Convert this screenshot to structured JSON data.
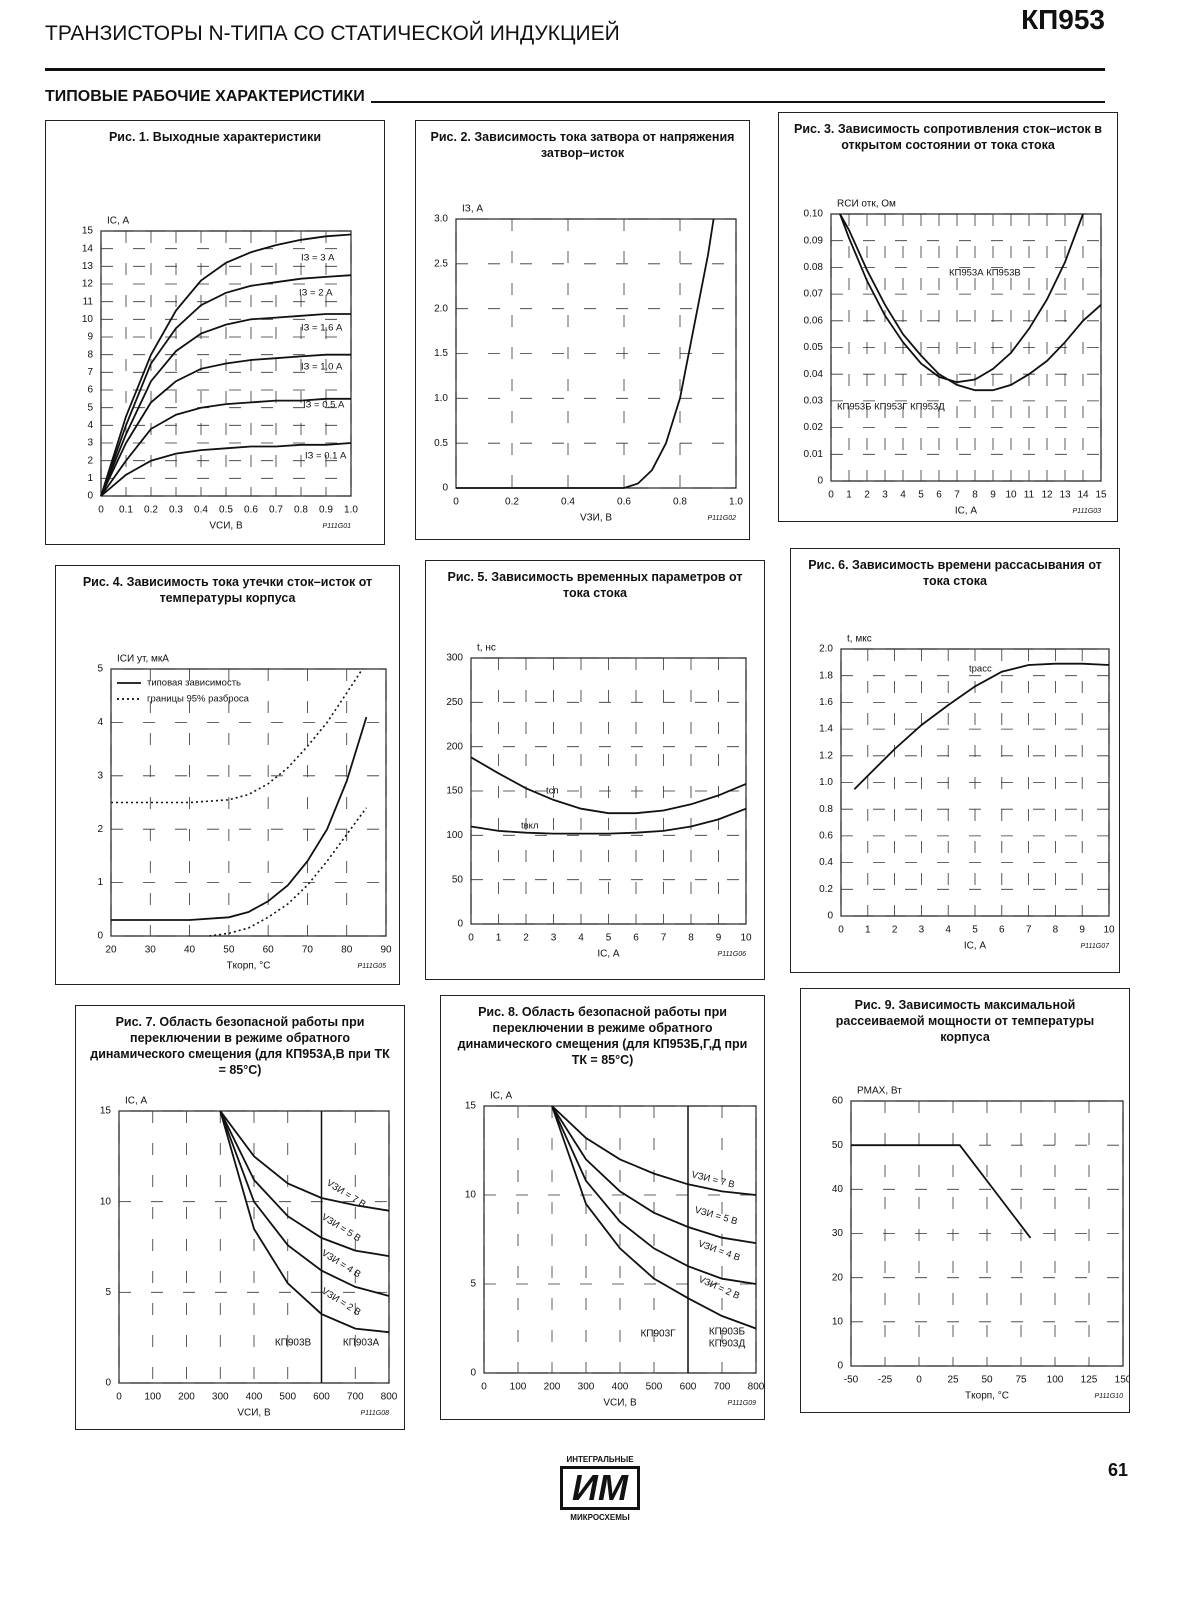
{
  "header": {
    "title": "ТРАНЗИСТОРЫ N-ТИПА СО СТАТИЧЕСКОЙ ИНДУКЦИЕЙ",
    "part": "КП953",
    "section": "ТИПОВЫЕ РАБОЧИЕ ХАРАКТЕРИСТИКИ"
  },
  "chart_data": [
    {
      "type": "line",
      "title": "Рис. 1. Выходные характеристики",
      "ylabel": "IС, А",
      "xlabel": "VСИ, В",
      "code": "P111G01",
      "x": [
        0,
        0.1,
        0.2,
        0.3,
        0.4,
        0.5,
        0.6,
        0.7,
        0.8,
        0.9,
        1.0
      ],
      "series": [
        {
          "name": "IЗ = 3 А",
          "color": "#111111",
          "values": [
            0,
            4.5,
            8,
            10.5,
            12.2,
            13.2,
            13.8,
            14.2,
            14.5,
            14.7,
            14.8
          ]
        },
        {
          "name": "IЗ = 2 А",
          "color": "#111111",
          "values": [
            0,
            4,
            7.5,
            9.5,
            10.8,
            11.5,
            11.9,
            12.1,
            12.3,
            12.4,
            12.5
          ]
        },
        {
          "name": "IЗ = 1.6 А",
          "color": "#111111",
          "values": [
            0,
            3.5,
            6.5,
            8.2,
            9.2,
            9.7,
            10,
            10.1,
            10.2,
            10.3,
            10.3
          ]
        },
        {
          "name": "IЗ = 1.0 А",
          "color": "#111111",
          "values": [
            0,
            3,
            5.3,
            6.5,
            7.2,
            7.5,
            7.7,
            7.8,
            7.9,
            8,
            8
          ]
        },
        {
          "name": "IЗ = 0.5 А",
          "color": "#111111",
          "values": [
            0,
            2,
            3.8,
            4.6,
            5,
            5.2,
            5.3,
            5.4,
            5.4,
            5.5,
            5.5
          ]
        },
        {
          "name": "IЗ = 0.1 А",
          "color": "#111111",
          "values": [
            0,
            1.2,
            2,
            2.4,
            2.6,
            2.7,
            2.8,
            2.8,
            2.9,
            2.9,
            3
          ]
        }
      ],
      "xlim": [
        0,
        1
      ],
      "xticks": [
        0,
        0.1,
        0.2,
        0.3,
        0.4,
        0.5,
        0.6,
        0.7,
        0.8,
        0.9,
        {
          "value": 1,
          "label": "1.0"
        }
      ],
      "ylim": [
        0,
        15
      ],
      "yticks": [
        0,
        1,
        2,
        3,
        4,
        5,
        6,
        7,
        8,
        9,
        10,
        11,
        12,
        13,
        14,
        15
      ],
      "grid": true
    },
    {
      "type": "line",
      "title": "Рис. 2. Зависимость тока затвора от напряжения затвор–исток",
      "ylabel": "IЗ, А",
      "xlabel": "VЗИ, В",
      "code": "P111G02",
      "x": [
        0,
        0.5,
        0.6,
        0.65,
        0.7,
        0.75,
        0.8,
        0.85,
        0.9,
        0.92
      ],
      "values": [
        0,
        0,
        0,
        0.05,
        0.2,
        0.5,
        1.0,
        1.8,
        2.6,
        3.0
      ],
      "color": "#111111",
      "xlim": [
        0,
        1
      ],
      "xticks": [
        0,
        0.2,
        0.4,
        0.6,
        0.8,
        {
          "value": 1,
          "label": "1.0"
        }
      ],
      "ylim": [
        0,
        3
      ],
      "yticks": [
        0,
        0.5,
        {
          "value": 1,
          "label": "1.0"
        },
        1.5,
        {
          "value": 2,
          "label": "2.0"
        },
        2.5,
        {
          "value": 3,
          "label": "3.0"
        }
      ],
      "grid": true
    },
    {
      "type": "line",
      "title": "Рис. 3. Зависимость сопротивления сток–исток в открытом состоянии от тока стока",
      "ylabel": "RСИ отк, Ом",
      "xlabel": "IС, А",
      "code": "P111G03",
      "series": [
        {
          "name": "КП953А КП953В",
          "color": "#111111",
          "x": [
            0.5,
            1,
            2,
            3,
            4,
            5,
            6,
            7,
            8,
            9,
            10,
            11,
            12,
            13,
            14
          ],
          "values": [
            0.1,
            0.091,
            0.075,
            0.062,
            0.052,
            0.044,
            0.039,
            0.037,
            0.038,
            0.042,
            0.048,
            0.057,
            0.068,
            0.082,
            0.1
          ]
        },
        {
          "name": "КП953Б КП953Г КП953Д",
          "color": "#111111",
          "x": [
            0.5,
            1,
            2,
            3,
            4,
            5,
            6,
            7,
            8,
            9,
            10,
            11,
            12,
            13,
            14,
            15
          ],
          "values": [
            0.1,
            0.094,
            0.079,
            0.066,
            0.055,
            0.047,
            0.04,
            0.036,
            0.034,
            0.034,
            0.036,
            0.04,
            0.045,
            0.052,
            0.06,
            0.066
          ]
        }
      ],
      "xlim": [
        0,
        15
      ],
      "xticks": [
        0,
        1,
        2,
        3,
        4,
        5,
        6,
        7,
        8,
        9,
        10,
        11,
        12,
        13,
        14,
        15
      ],
      "ylim": [
        0,
        0.1
      ],
      "yticks": [
        0,
        0.01,
        0.02,
        0.03,
        0.04,
        0.05,
        0.06,
        0.07,
        0.08,
        0.09,
        {
          "value": 0.1,
          "label": "0.10"
        }
      ],
      "grid": true
    },
    {
      "type": "line",
      "title": "Рис. 4. Зависимость тока утечки сток–исток от температуры корпуса",
      "ylabel": "IСИ ут, мкА",
      "xlabel": "Tкорп, °C",
      "code": "P111G05",
      "legend": "upper left",
      "series": [
        {
          "name": "типовая зависимость",
          "color": "#111111",
          "x": [
            20,
            30,
            40,
            50,
            55,
            60,
            65,
            70,
            75,
            80,
            85
          ],
          "values": [
            0.3,
            0.3,
            0.3,
            0.35,
            0.45,
            0.65,
            0.95,
            1.4,
            2.0,
            2.9,
            4.1
          ]
        },
        {
          "name": "границы 95% разброса",
          "color": "#111111",
          "dash": true,
          "x": [
            20,
            30,
            40,
            50,
            55,
            60,
            65,
            70,
            75,
            80,
            84
          ],
          "values": [
            2.5,
            2.5,
            2.5,
            2.55,
            2.65,
            2.85,
            3.15,
            3.55,
            4.0,
            4.55,
            5.0
          ]
        },
        {
          "color": "#111111",
          "dash": true,
          "x": [
            45,
            50,
            55,
            60,
            65,
            70,
            75,
            80,
            85
          ],
          "values": [
            0,
            0.05,
            0.15,
            0.35,
            0.6,
            0.95,
            1.4,
            1.9,
            2.4
          ]
        }
      ],
      "xlim": [
        20,
        90
      ],
      "xticks": [
        20,
        30,
        40,
        50,
        60,
        70,
        80,
        90
      ],
      "ylim": [
        0,
        5
      ],
      "yticks": [
        0,
        1,
        2,
        3,
        4,
        5
      ],
      "grid": true
    },
    {
      "type": "line",
      "title": "Рис. 5. Зависимость временных параметров от тока стока",
      "ylabel": "t, нс",
      "xlabel": "IС, А",
      "code": "P111G06",
      "x": [
        0,
        1,
        2,
        3,
        4,
        5,
        6,
        7,
        8,
        9,
        10
      ],
      "series": [
        {
          "name": "tсп",
          "color": "#111111",
          "values": [
            188,
            170,
            153,
            140,
            130,
            125,
            125,
            128,
            135,
            145,
            158
          ]
        },
        {
          "name": "tвкл",
          "color": "#111111",
          "values": [
            110,
            105,
            103,
            102,
            102,
            102,
            103,
            105,
            110,
            118,
            130
          ]
        }
      ],
      "xlim": [
        0,
        10
      ],
      "xticks": [
        0,
        1,
        2,
        3,
        4,
        5,
        6,
        7,
        8,
        9,
        10
      ],
      "ylim": [
        0,
        300
      ],
      "yticks": [
        0,
        50,
        100,
        150,
        200,
        250,
        300
      ],
      "grid": true
    },
    {
      "type": "line",
      "title": "Рис. 6. Зависимость времени рассасывания от тока стока",
      "ylabel": "t, мкс",
      "xlabel": "IС, А",
      "code": "P111G07",
      "series": [
        {
          "name": "tрасс",
          "color": "#111111",
          "x": [
            0.5,
            1,
            2,
            3,
            4,
            5,
            6,
            7,
            8,
            9,
            10
          ],
          "values": [
            0.95,
            1.05,
            1.25,
            1.43,
            1.58,
            1.72,
            1.83,
            1.88,
            1.89,
            1.89,
            1.88
          ]
        }
      ],
      "xlim": [
        0,
        10
      ],
      "xticks": [
        0,
        1,
        2,
        3,
        4,
        5,
        6,
        7,
        8,
        9,
        10
      ],
      "ylim": [
        0,
        2
      ],
      "yticks": [
        0,
        0.2,
        0.4,
        0.6,
        0.8,
        {
          "value": 1,
          "label": "1.0"
        },
        1.2,
        1.4,
        1.6,
        1.8,
        {
          "value": 2,
          "label": "2.0"
        }
      ],
      "grid": true
    },
    {
      "type": "line",
      "title": "Рис. 7. Область безопасной работы при переключении в режиме обратного динамического смещения (для КП953А,В при TК = 85°С)",
      "ylabel": "IС, А",
      "xlabel": "VСИ, В",
      "code": "P111G08",
      "x": [
        300,
        400,
        500,
        600,
        700,
        800
      ],
      "series": [
        {
          "name": "VЗИ = 7 В",
          "color": "#111111",
          "values": [
            15,
            12.5,
            11,
            10.2,
            9.8,
            9.5
          ]
        },
        {
          "name": "VЗИ = 5 В",
          "color": "#111111",
          "values": [
            15,
            11.2,
            9.2,
            8,
            7.3,
            7
          ]
        },
        {
          "name": "VЗИ = 4 В",
          "color": "#111111",
          "values": [
            15,
            10,
            7.6,
            6.2,
            5.3,
            4.8
          ]
        },
        {
          "name": "VЗИ = 2 В",
          "color": "#111111",
          "values": [
            15,
            8.5,
            5.5,
            3.8,
            3,
            2.8
          ]
        }
      ],
      "divider": 600,
      "regions": [
        "КП903В",
        "КП903А"
      ],
      "xlim": [
        0,
        800
      ],
      "xticks": [
        0,
        100,
        200,
        300,
        400,
        500,
        600,
        700,
        800
      ],
      "ylim": [
        0,
        15
      ],
      "yticks": [
        0,
        5,
        10,
        15
      ],
      "grid": true
    },
    {
      "type": "line",
      "title": "Рис. 8. Область безопасной работы при переключении в режиме обратного динамического смещения (для КП953Б,Г,Д при TК = 85°С)",
      "ylabel": "IС, А",
      "xlabel": "VСИ, В",
      "code": "P111G09",
      "x": [
        200,
        300,
        400,
        500,
        600,
        700,
        800
      ],
      "series": [
        {
          "name": "VЗИ = 7 В",
          "color": "#111111",
          "values": [
            15,
            13.2,
            12,
            11.2,
            10.6,
            10.2,
            10.0
          ]
        },
        {
          "name": "VЗИ = 5 В",
          "color": "#111111",
          "values": [
            15,
            12,
            10.2,
            9,
            8.2,
            7.6,
            7.3
          ]
        },
        {
          "name": "VЗИ = 4 В",
          "color": "#111111",
          "values": [
            15,
            10.8,
            8.5,
            7,
            6,
            5.3,
            5
          ]
        },
        {
          "name": "VЗИ = 2 В",
          "color": "#111111",
          "values": [
            15,
            9.5,
            7,
            5.3,
            4.2,
            3.2,
            2.5
          ]
        }
      ],
      "divider": 600,
      "regions": [
        "КП903Г",
        "КП903Б",
        "КП903Д"
      ],
      "xlim": [
        0,
        800
      ],
      "xticks": [
        0,
        100,
        200,
        300,
        400,
        500,
        600,
        700,
        800
      ],
      "ylim": [
        0,
        15
      ],
      "yticks": [
        0,
        5,
        10,
        15
      ],
      "grid": true
    },
    {
      "type": "line",
      "title": "Рис. 9. Зависимость максимальной рассеиваемой мощности от температуры корпуса",
      "ylabel": "PМАХ, Вт",
      "xlabel": "Tкорп, °C",
      "code": "P111G10",
      "x": [
        -50,
        30,
        82
      ],
      "values": [
        50,
        50,
        29
      ],
      "color": "#111111",
      "xlim": [
        -50,
        150
      ],
      "xticks": [
        -50,
        -25,
        0,
        25,
        50,
        75,
        100,
        125,
        150
      ],
      "ylim": [
        0,
        60
      ],
      "yticks": [
        0,
        10,
        20,
        30,
        40,
        50,
        60
      ],
      "grid": true
    }
  ],
  "footer": {
    "logo_top": "ИНТЕГРАЛЬНЫЕ",
    "logo": "ИМ",
    "logo_bottom": "МИКРОСХЕМЫ",
    "page": 61
  }
}
